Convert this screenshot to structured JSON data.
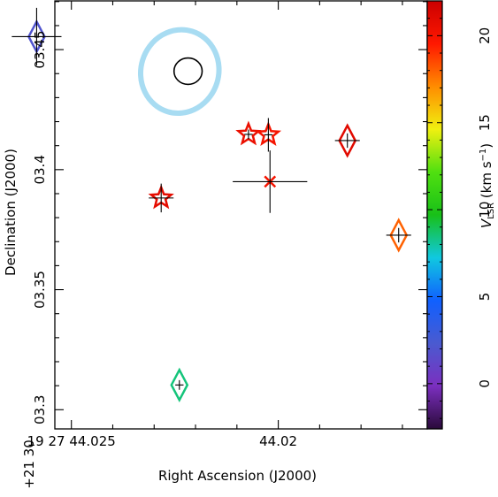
{
  "chart_data": {
    "type": "scatter",
    "xlabel": "Right Ascension (J2000)",
    "ylabel": "Declination (J2000)",
    "colorbar_label": {
      "symbol": "V",
      "sub": "LSR",
      "unit_open": " (km s",
      "unit_sup": "−1",
      "unit_close": ")"
    },
    "x_axis": {
      "ref_label": "19 27 44.025",
      "ticks": [
        {
          "value": 44.025,
          "label": "19 27 44.025"
        },
        {
          "value": 44.02,
          "label": "44.02"
        }
      ],
      "range": [
        44.0254,
        44.0164
      ]
    },
    "y_axis": {
      "ref_label": "+21 30",
      "ticks": [
        {
          "value": 3.3,
          "label": "03.3"
        },
        {
          "value": 3.35,
          "label": "03.35"
        },
        {
          "value": 3.4,
          "label": "03.4"
        },
        {
          "value": 3.45,
          "label": "03.45"
        }
      ],
      "range": [
        3.292,
        3.4703
      ]
    },
    "colorbar": {
      "range": [
        -2.6,
        22
      ],
      "ticks": [
        0,
        5,
        10,
        15,
        20
      ],
      "colors": [
        "#2a0a3a",
        "#7b2fbf",
        "#4a5ad0",
        "#1060ff",
        "#10c8e0",
        "#18c018",
        "#50e010",
        "#f0f010",
        "#ff8c00",
        "#ff1800",
        "#cc0000"
      ]
    },
    "beam": {
      "ra": 44.02238,
      "dec": 3.4409,
      "dra": 0.00094,
      "ddec": 0.0175,
      "angle": 17
    },
    "synthesized_beam": {
      "ra": 44.02218,
      "dec": 3.441,
      "dra": 0.00034,
      "ddec": 0.0055
    },
    "points": [
      {
        "marker": "diamond",
        "ra": 44.02584,
        "dec": 3.4554,
        "vlsr": 2.0,
        "err_ra": 0.0006,
        "err_dec": 0.012
      },
      {
        "marker": "star",
        "ra": 44.02072,
        "dec": 3.4147,
        "vlsr": 20.5,
        "err_ra": 0.0001,
        "err_dec": 0.002
      },
      {
        "marker": "star",
        "ra": 44.02024,
        "dec": 3.4145,
        "vlsr": 20.0,
        "err_ra": 0.0001,
        "err_dec": 0.007
      },
      {
        "marker": "diamond",
        "ra": 44.01833,
        "dec": 3.4121,
        "vlsr": 21.0,
        "err_ra": 0.0003,
        "err_dec": 0.003
      },
      {
        "marker": "star",
        "ra": 44.02283,
        "dec": 3.3882,
        "vlsr": 20.8,
        "err_ra": 0.0003,
        "err_dec": 0.006
      },
      {
        "marker": "cross",
        "ra": 44.0202,
        "dec": 3.395,
        "vlsr": 20.0,
        "err_ra": 0.0009,
        "err_dec": 0.013
      },
      {
        "marker": "diamond",
        "ra": 44.01709,
        "dec": 3.3727,
        "vlsr": 18.0,
        "err_ra": 0.0003,
        "err_dec": 0.003
      },
      {
        "marker": "diamond",
        "ra": 44.02239,
        "dec": 3.3103,
        "vlsr": 8.5,
        "err_ra": 0.0001,
        "err_dec": 0.002
      }
    ]
  }
}
